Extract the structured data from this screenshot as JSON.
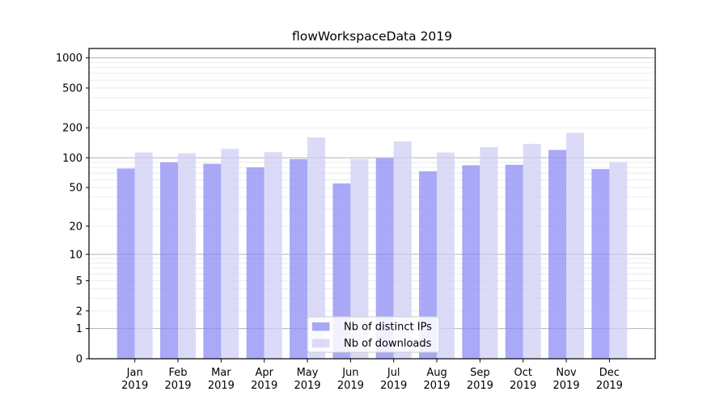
{
  "page": {
    "background": "#ffffff"
  },
  "chart_data": {
    "type": "bar",
    "title": "flowWorkspaceData 2019",
    "categories": [
      "Jan",
      "Feb",
      "Mar",
      "Apr",
      "May",
      "Jun",
      "Jul",
      "Aug",
      "Sep",
      "Oct",
      "Nov",
      "Dec"
    ],
    "category_year": "2019",
    "series": [
      {
        "name": "Nb of distinct IPs",
        "color": "rgba(140,140,246,0.75)",
        "apparent_color": "#a9a9f4",
        "values": [
          78,
          90,
          87,
          80,
          97,
          55,
          99,
          73,
          84,
          85,
          120,
          77
        ]
      },
      {
        "name": "Nb of downloads",
        "color": "rgba(207,207,246,0.75)",
        "apparent_color": "#dbdbf7",
        "values": [
          113,
          111,
          123,
          114,
          160,
          97,
          146,
          113,
          128,
          138,
          178,
          90
        ]
      }
    ],
    "yscale": "log1p",
    "ylabel": "",
    "xlabel": "",
    "ylim": [
      0,
      1240
    ],
    "y_tick_values": [
      0,
      1,
      2,
      5,
      10,
      20,
      50,
      100,
      200,
      500,
      1000
    ],
    "y_major_gridline_values": [
      1,
      10,
      100,
      1000
    ],
    "grid": true,
    "grid_major_color": "#b3b3b3",
    "grid_minor_color": "#e9e9e9",
    "axis_color": "#000000",
    "legend": {
      "position": "lower center",
      "background": "rgba(255,255,255,0.85)",
      "border_color": "#cccccc"
    }
  }
}
